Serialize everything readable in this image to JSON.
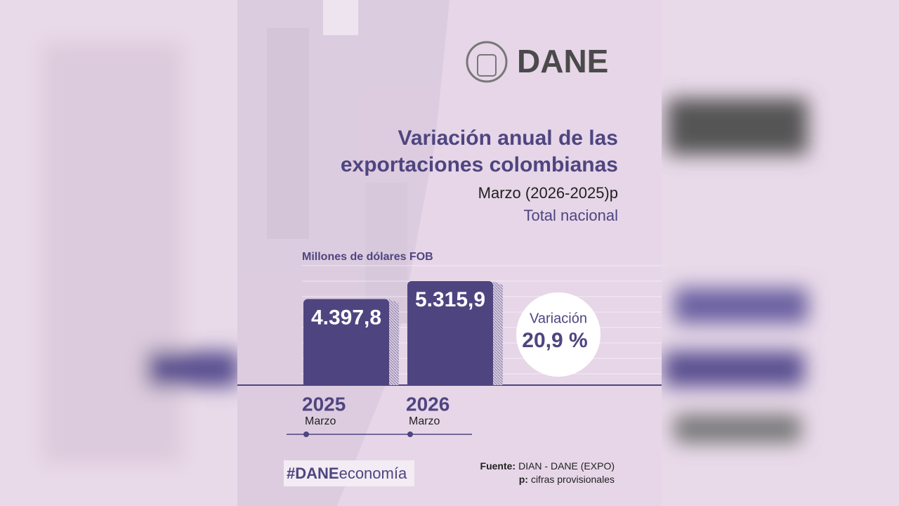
{
  "header": {
    "brand": "DANE"
  },
  "chart_data": {
    "type": "bar",
    "title_lines": [
      "Variación anual de las",
      "exportaciones colombianas"
    ],
    "subtitle": "Marzo (2026-2025)p",
    "scope": "Total nacional",
    "unit_label": "Millones de dólares FOB",
    "categories": [
      "2025",
      "2026"
    ],
    "category_sublabels": [
      "Marzo",
      "Marzo"
    ],
    "values": [
      4397.8,
      5315.9
    ],
    "value_labels": [
      "4.397,8",
      "5.315,9"
    ],
    "color": "#4e4580",
    "variation": {
      "label": "Variación",
      "value": 20.9,
      "value_label": "20,9 %"
    }
  },
  "footer": {
    "hashtag_bold": "#DANE",
    "hashtag_rest": "economía",
    "source_key": "Fuente:",
    "source_text": "DIAN - DANE (EXPO)",
    "note_key": "p:",
    "note_text": "cifras provisionales"
  }
}
